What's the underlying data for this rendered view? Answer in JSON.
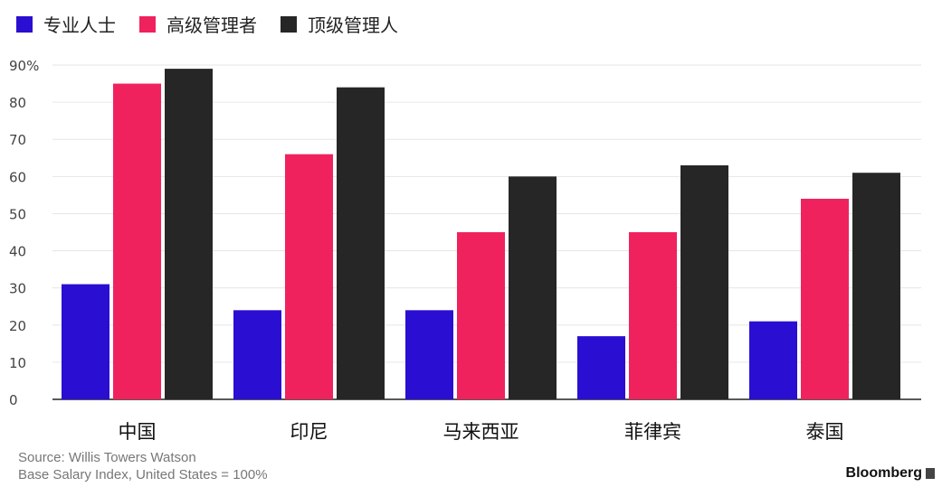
{
  "chart_data": {
    "type": "bar",
    "categories": [
      "中国",
      "印尼",
      "马来西亚",
      "菲律宾",
      "泰国"
    ],
    "series": [
      {
        "name": "专业人士",
        "values": [
          31,
          24,
          24,
          17,
          21
        ],
        "color": "#2a0ed1"
      },
      {
        "name": "高级管理者",
        "values": [
          85,
          66,
          45,
          45,
          54
        ],
        "color": "#f0225e"
      },
      {
        "name": "顶级管理人",
        "values": [
          89,
          84,
          60,
          63,
          61
        ],
        "color": "#262626"
      }
    ],
    "ylim": [
      0,
      90
    ],
    "yticks": [
      0,
      10,
      20,
      30,
      40,
      50,
      60,
      70,
      80,
      90
    ],
    "ytick_labels": [
      "0",
      "10",
      "20",
      "30",
      "40",
      "50",
      "60",
      "70",
      "80",
      "90%"
    ],
    "grid": true,
    "legend_position": "top-left"
  },
  "footer": {
    "source": "Source: Willis Towers Watson",
    "note": "Base Salary Index, United States = 100%"
  },
  "brand": "Bloomberg"
}
